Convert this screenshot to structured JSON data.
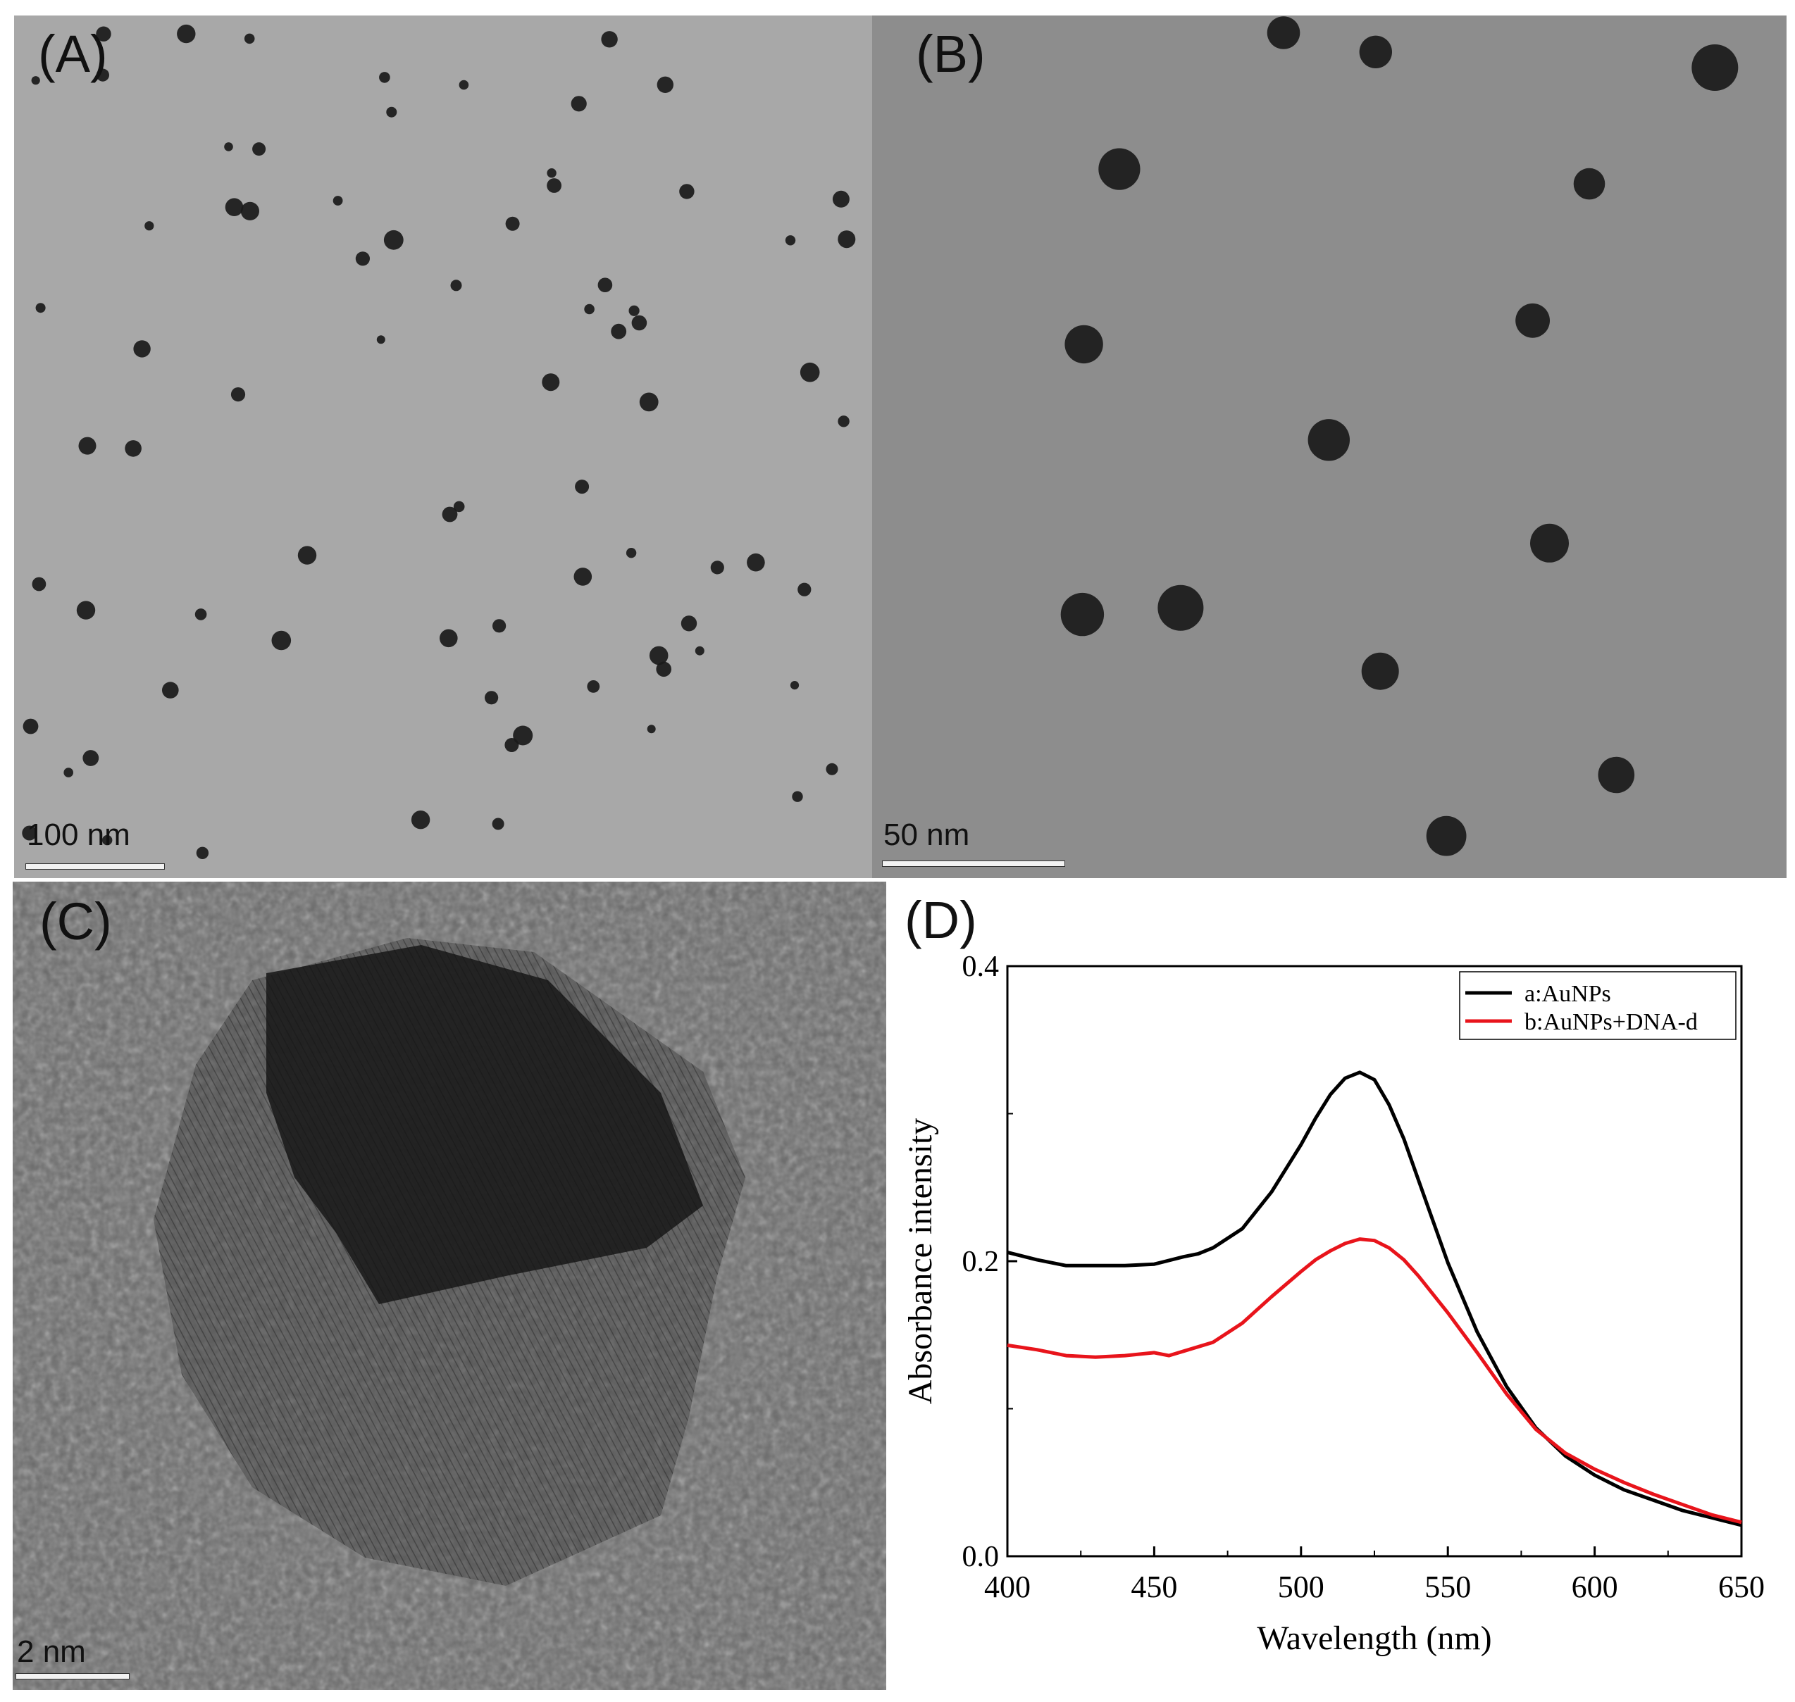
{
  "figure": {
    "panels": [
      {
        "id": "A",
        "label": "(A)",
        "scale_bar": "100 nm"
      },
      {
        "id": "B",
        "label": "(B)",
        "scale_bar": "50 nm"
      },
      {
        "id": "C",
        "label": "(C)",
        "scale_bar": "2 nm"
      },
      {
        "id": "D",
        "label": "(D)"
      }
    ]
  },
  "colors": {
    "black_series": "#000000",
    "red_series": "#e8141b"
  },
  "chart_data": {
    "type": "line",
    "title": "",
    "xlabel": "Wavelength (nm)",
    "ylabel": "Absorbance intensity",
    "xlim": [
      400,
      650
    ],
    "ylim": [
      0.0,
      0.4
    ],
    "xticks": [
      400,
      450,
      500,
      550,
      600,
      650
    ],
    "yticks": [
      0.0,
      0.2,
      0.4
    ],
    "ytick_labels": [
      "0.0",
      "0.2",
      "0.4"
    ],
    "grid": false,
    "legend_position": "top-right",
    "series": [
      {
        "name": "a:AuNPs",
        "color": "#000000",
        "x": [
          400,
          410,
          420,
          430,
          440,
          450,
          460,
          465,
          470,
          480,
          490,
          500,
          505,
          510,
          515,
          520,
          525,
          530,
          535,
          540,
          550,
          560,
          570,
          580,
          590,
          600,
          610,
          620,
          630,
          640,
          650
        ],
        "y": [
          0.206,
          0.201,
          0.197,
          0.197,
          0.197,
          0.198,
          0.203,
          0.205,
          0.209,
          0.222,
          0.247,
          0.279,
          0.297,
          0.313,
          0.324,
          0.328,
          0.323,
          0.306,
          0.283,
          0.255,
          0.199,
          0.152,
          0.115,
          0.087,
          0.068,
          0.055,
          0.045,
          0.038,
          0.031,
          0.026,
          0.021
        ]
      },
      {
        "name": "b:AuNPs+DNA-d",
        "color": "#e8141b",
        "x": [
          400,
          410,
          420,
          430,
          440,
          450,
          455,
          460,
          470,
          480,
          490,
          500,
          505,
          510,
          515,
          520,
          525,
          530,
          535,
          540,
          550,
          560,
          570,
          580,
          590,
          600,
          610,
          620,
          630,
          640,
          650
        ],
        "y": [
          0.143,
          0.14,
          0.136,
          0.135,
          0.136,
          0.138,
          0.136,
          0.139,
          0.145,
          0.158,
          0.176,
          0.193,
          0.201,
          0.207,
          0.212,
          0.215,
          0.214,
          0.209,
          0.201,
          0.19,
          0.165,
          0.138,
          0.11,
          0.086,
          0.07,
          0.059,
          0.05,
          0.042,
          0.035,
          0.028,
          0.023
        ]
      }
    ]
  }
}
